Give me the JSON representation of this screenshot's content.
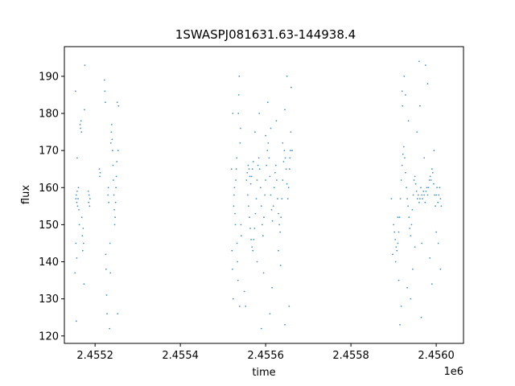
{
  "chart_data": {
    "type": "scatter",
    "title": "1SWASPJ081631.63-144938.4",
    "xlabel": "time",
    "ylabel": "flux",
    "x_offset_label": "1e6",
    "xlim": [
      2455128,
      2456064
    ],
    "ylim": [
      118,
      198
    ],
    "x_ticks": [
      2455200,
      2455400,
      2455600,
      2455800,
      2456000
    ],
    "x_tick_labels": [
      "2.4552",
      "2.4554",
      "2.4556",
      "2.4558",
      "2.4560"
    ],
    "y_ticks": [
      120,
      130,
      140,
      150,
      160,
      170,
      180,
      190
    ],
    "y_tick_labels": [
      "120",
      "130",
      "140",
      "150",
      "160",
      "170",
      "180",
      "190"
    ],
    "marker_color": "#1f77b4",
    "grid": false,
    "series": [
      {
        "values_desc": "x = time (JD), y = flux",
        "points": [
          [
            2455155,
            157
          ],
          [
            2455156,
            158
          ],
          [
            2455157,
            156
          ],
          [
            2455158,
            159
          ],
          [
            2455159,
            155
          ],
          [
            2455160,
            157
          ],
          [
            2455161,
            160
          ],
          [
            2455162,
            154
          ],
          [
            2455155,
            145
          ],
          [
            2455157,
            141
          ],
          [
            2455153,
            137
          ],
          [
            2455158,
            168
          ],
          [
            2455154,
            186
          ],
          [
            2455156,
            124
          ],
          [
            2455163,
            150
          ],
          [
            2455165,
            177
          ],
          [
            2455166,
            176
          ],
          [
            2455167,
            178
          ],
          [
            2455168,
            175
          ],
          [
            2455169,
            152
          ],
          [
            2455170,
            147
          ],
          [
            2455171,
            143
          ],
          [
            2455172,
            149
          ],
          [
            2455173,
            145
          ],
          [
            2455174,
            134
          ],
          [
            2455175,
            181
          ],
          [
            2455176,
            193
          ],
          [
            2455185,
            156
          ],
          [
            2455186,
            158
          ],
          [
            2455187,
            155
          ],
          [
            2455188,
            157
          ],
          [
            2455184,
            159
          ],
          [
            2455210,
            165
          ],
          [
            2455211,
            163
          ],
          [
            2455212,
            164
          ],
          [
            2455222,
            189
          ],
          [
            2455223,
            186
          ],
          [
            2455224,
            183
          ],
          [
            2455225,
            142
          ],
          [
            2455226,
            138
          ],
          [
            2455227,
            131
          ],
          [
            2455228,
            126
          ],
          [
            2455230,
            158
          ],
          [
            2455231,
            160
          ],
          [
            2455232,
            156
          ],
          [
            2455237,
            172
          ],
          [
            2455238,
            175
          ],
          [
            2455239,
            177
          ],
          [
            2455240,
            173
          ],
          [
            2455241,
            170
          ],
          [
            2455242,
            166
          ],
          [
            2455243,
            162
          ],
          [
            2455244,
            158
          ],
          [
            2455245,
            154
          ],
          [
            2455246,
            150
          ],
          [
            2455247,
            152
          ],
          [
            2455248,
            156
          ],
          [
            2455249,
            160
          ],
          [
            2455250,
            163
          ],
          [
            2455251,
            167
          ],
          [
            2455236,
            137
          ],
          [
            2455235,
            145
          ],
          [
            2455252,
            183
          ],
          [
            2455253,
            126
          ],
          [
            2455254,
            170
          ],
          [
            2455255,
            182
          ],
          [
            2455234,
            122
          ],
          [
            2455525,
            155
          ],
          [
            2455526,
            158
          ],
          [
            2455527,
            160
          ],
          [
            2455528,
            153
          ],
          [
            2455529,
            150
          ],
          [
            2455530,
            162
          ],
          [
            2455531,
            165
          ],
          [
            2455532,
            168
          ],
          [
            2455533,
            145
          ],
          [
            2455534,
            140
          ],
          [
            2455535,
            135
          ],
          [
            2455536,
            180
          ],
          [
            2455537,
            185
          ],
          [
            2455538,
            190
          ],
          [
            2455539,
            128
          ],
          [
            2455540,
            172
          ],
          [
            2455541,
            176
          ],
          [
            2455542,
            150
          ],
          [
            2455543,
            147
          ],
          [
            2455520,
            165
          ],
          [
            2455521,
            143
          ],
          [
            2455522,
            138
          ],
          [
            2455523,
            180
          ],
          [
            2455524,
            130
          ],
          [
            2455555,
            162
          ],
          [
            2455557,
            164
          ],
          [
            2455559,
            166
          ],
          [
            2455561,
            165
          ],
          [
            2455563,
            163
          ],
          [
            2455565,
            161
          ],
          [
            2455567,
            163
          ],
          [
            2455569,
            165
          ],
          [
            2455571,
            167
          ],
          [
            2455558,
            158
          ],
          [
            2455560,
            155
          ],
          [
            2455562,
            152
          ],
          [
            2455564,
            149
          ],
          [
            2455566,
            146
          ],
          [
            2455568,
            144
          ],
          [
            2455570,
            143
          ],
          [
            2455572,
            146
          ],
          [
            2455574,
            149
          ],
          [
            2455576,
            153
          ],
          [
            2455578,
            157
          ],
          [
            2455580,
            162
          ],
          [
            2455582,
            166
          ],
          [
            2455584,
            168
          ],
          [
            2455586,
            165
          ],
          [
            2455588,
            160
          ],
          [
            2455590,
            155
          ],
          [
            2455592,
            150
          ],
          [
            2455594,
            147
          ],
          [
            2455596,
            152
          ],
          [
            2455598,
            158
          ],
          [
            2455600,
            162
          ],
          [
            2455602,
            166
          ],
          [
            2455604,
            170
          ],
          [
            2455606,
            172
          ],
          [
            2455608,
            168
          ],
          [
            2455610,
            163
          ],
          [
            2455612,
            158
          ],
          [
            2455614,
            154
          ],
          [
            2455616,
            151
          ],
          [
            2455618,
            155
          ],
          [
            2455620,
            160
          ],
          [
            2455622,
            164
          ],
          [
            2455624,
            166
          ],
          [
            2455626,
            162
          ],
          [
            2455628,
            157
          ],
          [
            2455630,
            153
          ],
          [
            2455632,
            150
          ],
          [
            2455634,
            148
          ],
          [
            2455636,
            152
          ],
          [
            2455638,
            157
          ],
          [
            2455640,
            162
          ],
          [
            2455642,
            167
          ],
          [
            2455644,
            170
          ],
          [
            2455646,
            168
          ],
          [
            2455648,
            165
          ],
          [
            2455650,
            161
          ],
          [
            2455652,
            157
          ],
          [
            2455654,
            160
          ],
          [
            2455656,
            165
          ],
          [
            2455658,
            170
          ],
          [
            2455575,
            175
          ],
          [
            2455585,
            180
          ],
          [
            2455595,
            137
          ],
          [
            2455605,
            183
          ],
          [
            2455615,
            133
          ],
          [
            2455625,
            178
          ],
          [
            2455635,
            139
          ],
          [
            2455645,
            181
          ],
          [
            2455655,
            128
          ],
          [
            2455580,
            140
          ],
          [
            2455600,
            174
          ],
          [
            2455612,
            176
          ],
          [
            2455630,
            143
          ],
          [
            2455640,
            172
          ],
          [
            2455650,
            190
          ],
          [
            2455660,
            187
          ],
          [
            2455659,
            175
          ],
          [
            2455657,
            168
          ],
          [
            2455662,
            170
          ],
          [
            2455550,
            132
          ],
          [
            2455553,
            128
          ],
          [
            2455590,
            122
          ],
          [
            2455645,
            123
          ],
          [
            2455610,
            126
          ],
          [
            2455900,
            150
          ],
          [
            2455902,
            148
          ],
          [
            2455904,
            146
          ],
          [
            2455906,
            144
          ],
          [
            2455908,
            143
          ],
          [
            2455910,
            145
          ],
          [
            2455912,
            148
          ],
          [
            2455914,
            152
          ],
          [
            2455916,
            157
          ],
          [
            2455918,
            162
          ],
          [
            2455920,
            166
          ],
          [
            2455922,
            169
          ],
          [
            2455924,
            171
          ],
          [
            2455926,
            168
          ],
          [
            2455928,
            164
          ],
          [
            2455930,
            160
          ],
          [
            2455932,
            157
          ],
          [
            2455934,
            155
          ],
          [
            2455936,
            152
          ],
          [
            2455938,
            149
          ],
          [
            2455940,
            147
          ],
          [
            2455942,
            150
          ],
          [
            2455944,
            154
          ],
          [
            2455946,
            158
          ],
          [
            2455948,
            162
          ],
          [
            2455950,
            163
          ],
          [
            2455952,
            161
          ],
          [
            2455954,
            159
          ],
          [
            2455956,
            157
          ],
          [
            2455958,
            158
          ],
          [
            2455960,
            156
          ],
          [
            2455962,
            157
          ],
          [
            2455964,
            160
          ],
          [
            2455966,
            158
          ],
          [
            2455968,
            157
          ],
          [
            2455970,
            159
          ],
          [
            2455972,
            158
          ],
          [
            2455974,
            156
          ],
          [
            2455976,
            159
          ],
          [
            2455978,
            160
          ],
          [
            2455980,
            158
          ],
          [
            2455982,
            160
          ],
          [
            2455984,
            162
          ],
          [
            2455986,
            163
          ],
          [
            2455988,
            162
          ],
          [
            2455990,
            165
          ],
          [
            2455992,
            164
          ],
          [
            2455994,
            161
          ],
          [
            2455996,
            158
          ],
          [
            2455998,
            155
          ],
          [
            2456000,
            158
          ],
          [
            2456002,
            160
          ],
          [
            2456004,
            156
          ],
          [
            2456006,
            158
          ],
          [
            2456008,
            160
          ],
          [
            2456010,
            157
          ],
          [
            2456012,
            155
          ],
          [
            2455905,
            140
          ],
          [
            2455912,
            135
          ],
          [
            2455918,
            128
          ],
          [
            2455921,
            182
          ],
          [
            2455925,
            190
          ],
          [
            2455928,
            185
          ],
          [
            2455935,
            178
          ],
          [
            2455945,
            138
          ],
          [
            2455950,
            144
          ],
          [
            2455955,
            175
          ],
          [
            2455962,
            182
          ],
          [
            2455966,
            145
          ],
          [
            2455972,
            168
          ],
          [
            2455980,
            188
          ],
          [
            2455985,
            141
          ],
          [
            2455990,
            134
          ],
          [
            2455995,
            170
          ],
          [
            2456000,
            148
          ],
          [
            2456005,
            145
          ],
          [
            2455898,
            142
          ],
          [
            2455895,
            157
          ],
          [
            2455915,
            123
          ],
          [
            2455940,
            130
          ],
          [
            2455965,
            125
          ],
          [
            2455975,
            193
          ],
          [
            2455960,
            194
          ],
          [
            2456010,
            138
          ],
          [
            2455932,
            133
          ],
          [
            2455920,
            186
          ],
          [
            2455910,
            152
          ]
        ]
      }
    ]
  }
}
